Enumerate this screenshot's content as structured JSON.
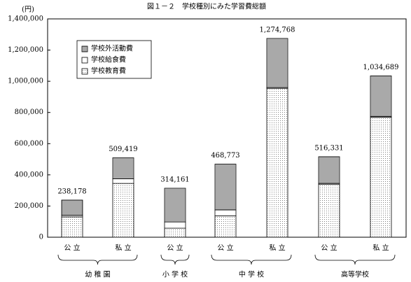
{
  "chart_data": {
    "type": "stacked_bar",
    "title": "図１－２　学校種別にみた学習費総額",
    "y_unit": "(円)",
    "categories": [
      "公 立",
      "私 立",
      "公 立",
      "公 立",
      "私 立",
      "公 立",
      "私 立"
    ],
    "groups": [
      {
        "name": "幼 稚 園",
        "span": 2
      },
      {
        "name": "小 学 校",
        "span": 1
      },
      {
        "name": "中 学 校",
        "span": 2
      },
      {
        "name": "高等学校",
        "span": 2
      }
    ],
    "series": [
      {
        "name": "学校教育費",
        "color": "#ffffff",
        "values": [
          130000,
          345000,
          58000,
          137000,
          955000,
          340000,
          770000
        ]
      },
      {
        "name": "学校給食費",
        "color": "#ffffff",
        "values": [
          10000,
          30000,
          40000,
          38000,
          5000,
          5000,
          5000
        ]
      },
      {
        "name": "学校外活動費",
        "color": "#d8d8d8",
        "values": [
          98178,
          134419,
          216161,
          293773,
          314768,
          171331,
          259689
        ]
      }
    ],
    "totals": [
      238178,
      509419,
      314161,
      468773,
      1274768,
      516331,
      1034689
    ],
    "value_labels": [
      "238,178",
      "509,419",
      "314,161",
      "468,773",
      "1,274,768",
      "516,331",
      "1,034,689"
    ],
    "ylim": [
      0,
      1400000
    ],
    "yticks": [
      0,
      {
        "value": 200000,
        "label": "200,000"
      },
      {
        "value": 400000,
        "label": "400,000"
      },
      {
        "value": 600000,
        "label": "600,000"
      },
      {
        "value": 800000,
        "label": "800,000"
      },
      {
        "value": 1000000,
        "label": "1,000,000"
      },
      {
        "value": 1200000,
        "label": "1,200,000"
      },
      {
        "value": 1400000,
        "label": "1,400,000"
      }
    ],
    "grid": false
  }
}
